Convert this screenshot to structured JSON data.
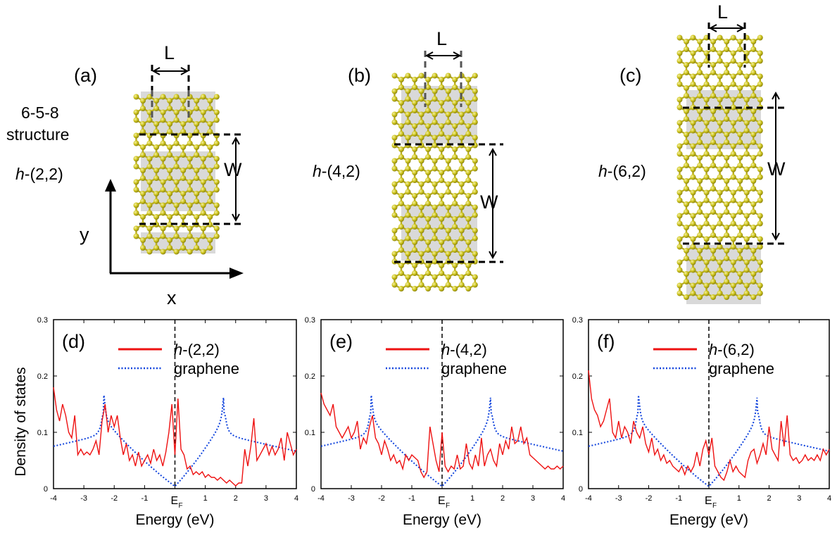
{
  "structures": [
    {
      "panel": "(a)",
      "label_prefix": "h",
      "label_suffix": "-(2,2)",
      "extra_label_line1": "6-5-8",
      "extra_label_line2": "structure",
      "length_label": "L",
      "width_label": "W"
    },
    {
      "panel": "(b)",
      "label_prefix": "h",
      "label_suffix": "-(4,2)",
      "length_label": "L",
      "width_label": "W"
    },
    {
      "panel": "(c)",
      "label_prefix": "h",
      "label_suffix": "-(6,2)",
      "length_label": "L",
      "width_label": "W"
    }
  ],
  "axes_labels": {
    "x": "x",
    "y": "y"
  },
  "colors": {
    "atom": "#c9c21a",
    "atom_light": "#e6e07a",
    "bond": "#b8ad20",
    "shade": "#d9d9d9",
    "red": "#ee1111",
    "blue": "#1144dd"
  },
  "chart_data": [
    {
      "type": "line",
      "panel": "(d)",
      "ylabel": "Density of states",
      "xlabel": "Energy (eV)",
      "xlim": [
        -4,
        4
      ],
      "ylim": [
        0,
        0.3
      ],
      "x_ticks": [
        "-4",
        "-3",
        "-2",
        "-1",
        "E",
        "1",
        "2",
        "3",
        "4"
      ],
      "y_ticks": [
        "0",
        "0.1",
        "0.2",
        "0.3"
      ],
      "fermi_label": "E",
      "fermi_sub": "F",
      "legend": {
        "red_prefix": "h",
        "red_suffix": "-(2,2)",
        "blue": "graphene"
      },
      "series": [
        {
          "name": "h-(2,2)",
          "style": "solid",
          "color": "#ee1111",
          "x": [
            -4,
            -3.9,
            -3.8,
            -3.7,
            -3.6,
            -3.5,
            -3.4,
            -3.3,
            -3.2,
            -3.1,
            -3.0,
            -2.9,
            -2.8,
            -2.7,
            -2.6,
            -2.5,
            -2.4,
            -2.3,
            -2.2,
            -2.1,
            -2.0,
            -1.9,
            -1.8,
            -1.7,
            -1.6,
            -1.5,
            -1.4,
            -1.3,
            -1.2,
            -1.1,
            -1.0,
            -0.9,
            -0.8,
            -0.7,
            -0.6,
            -0.5,
            -0.4,
            -0.3,
            -0.2,
            -0.1,
            0.0,
            0.1,
            0.2,
            0.3,
            0.4,
            0.5,
            0.6,
            0.7,
            0.8,
            0.9,
            1.0,
            1.1,
            1.2,
            1.3,
            1.4,
            1.5,
            1.6,
            1.7,
            1.8,
            1.9,
            2.0,
            2.1,
            2.2,
            2.3,
            2.4,
            2.5,
            2.6,
            2.7,
            2.8,
            2.9,
            3.0,
            3.1,
            3.2,
            3.3,
            3.4,
            3.5,
            3.6,
            3.7,
            3.8,
            3.9,
            4.0
          ],
          "y": [
            0.18,
            0.14,
            0.12,
            0.15,
            0.13,
            0.1,
            0.09,
            0.13,
            0.06,
            0.07,
            0.06,
            0.065,
            0.06,
            0.07,
            0.085,
            0.06,
            0.12,
            0.15,
            0.1,
            0.13,
            0.11,
            0.13,
            0.09,
            0.06,
            0.08,
            0.05,
            0.06,
            0.04,
            0.065,
            0.04,
            0.05,
            0.06,
            0.045,
            0.07,
            0.05,
            0.06,
            0.04,
            0.065,
            0.1,
            0.15,
            0.06,
            0.16,
            0.07,
            0.06,
            0.035,
            0.04,
            0.025,
            0.03,
            0.025,
            0.03,
            0.02,
            0.025,
            0.02,
            0.02,
            0.015,
            0.02,
            0.015,
            0.01,
            0.015,
            0.01,
            0.005,
            0.01,
            0.01,
            0.07,
            0.04,
            0.075,
            0.125,
            0.05,
            0.06,
            0.07,
            0.08,
            0.06,
            0.075,
            0.06,
            0.07,
            0.09,
            0.05,
            0.1,
            0.08,
            0.06,
            0.07
          ]
        },
        {
          "name": "graphene",
          "style": "dotted",
          "color": "#1144dd",
          "type_hint": "graphene_dos"
        }
      ]
    },
    {
      "type": "line",
      "panel": "(e)",
      "xlabel": "Energy (eV)",
      "xlim": [
        -4,
        4
      ],
      "ylim": [
        0,
        0.3
      ],
      "x_ticks": [
        "-4",
        "-3",
        "-2",
        "-1",
        "E",
        "1",
        "2",
        "3",
        "4"
      ],
      "y_ticks": [
        "0",
        "0.1",
        "0.2",
        "0.3"
      ],
      "fermi_label": "E",
      "fermi_sub": "F",
      "legend": {
        "red_prefix": "h",
        "red_suffix": "-(4,2)",
        "blue": "graphene"
      },
      "series": [
        {
          "name": "h-(4,2)",
          "style": "solid",
          "color": "#ee1111",
          "x": [
            -4,
            -3.9,
            -3.8,
            -3.7,
            -3.6,
            -3.5,
            -3.4,
            -3.3,
            -3.2,
            -3.1,
            -3.0,
            -2.9,
            -2.8,
            -2.7,
            -2.6,
            -2.5,
            -2.4,
            -2.3,
            -2.2,
            -2.1,
            -2.0,
            -1.9,
            -1.8,
            -1.7,
            -1.6,
            -1.5,
            -1.4,
            -1.3,
            -1.2,
            -1.1,
            -1.0,
            -0.9,
            -0.8,
            -0.7,
            -0.6,
            -0.5,
            -0.4,
            -0.3,
            -0.2,
            -0.1,
            0.0,
            0.1,
            0.2,
            0.3,
            0.4,
            0.5,
            0.6,
            0.7,
            0.8,
            0.9,
            1.0,
            1.1,
            1.2,
            1.3,
            1.4,
            1.5,
            1.6,
            1.7,
            1.8,
            1.9,
            2.0,
            2.1,
            2.2,
            2.3,
            2.4,
            2.5,
            2.6,
            2.7,
            2.8,
            2.9,
            3.0,
            3.1,
            3.2,
            3.3,
            3.4,
            3.5,
            3.6,
            3.7,
            3.8,
            3.9,
            4.0
          ],
          "y": [
            0.17,
            0.15,
            0.14,
            0.13,
            0.15,
            0.11,
            0.1,
            0.09,
            0.1,
            0.11,
            0.09,
            0.1,
            0.12,
            0.07,
            0.09,
            0.08,
            0.11,
            0.13,
            0.09,
            0.08,
            0.06,
            0.085,
            0.07,
            0.05,
            0.06,
            0.045,
            0.05,
            0.035,
            0.06,
            0.05,
            0.06,
            0.055,
            0.05,
            0.03,
            0.02,
            0.03,
            0.11,
            0.08,
            0.05,
            0.03,
            0.1,
            0.04,
            0.03,
            0.04,
            0.035,
            0.06,
            0.035,
            0.04,
            0.08,
            0.045,
            0.035,
            0.06,
            0.04,
            0.09,
            0.04,
            0.06,
            0.07,
            0.05,
            0.04,
            0.08,
            0.06,
            0.085,
            0.07,
            0.11,
            0.08,
            0.085,
            0.11,
            0.08,
            0.09,
            0.06,
            0.055,
            0.05,
            0.045,
            0.04,
            0.035,
            0.04,
            0.035,
            0.035,
            0.04,
            0.035,
            0.04
          ]
        },
        {
          "name": "graphene",
          "style": "dotted",
          "color": "#1144dd",
          "type_hint": "graphene_dos"
        }
      ]
    },
    {
      "type": "line",
      "panel": "(f)",
      "xlabel": "Energy (eV)",
      "xlim": [
        -4,
        4
      ],
      "ylim": [
        0,
        0.3
      ],
      "x_ticks": [
        "-4",
        "-3",
        "-2",
        "-1",
        "E",
        "1",
        "2",
        "3",
        "4"
      ],
      "y_ticks": [
        "0",
        "0.1",
        "0.2",
        "0.3"
      ],
      "fermi_label": "E",
      "fermi_sub": "F",
      "legend": {
        "red_prefix": "h",
        "red_suffix": "-(6,2)",
        "blue": "graphene"
      },
      "series": [
        {
          "name": "h-(6,2)",
          "style": "solid",
          "color": "#ee1111",
          "x": [
            -4,
            -3.9,
            -3.8,
            -3.7,
            -3.6,
            -3.5,
            -3.4,
            -3.3,
            -3.2,
            -3.1,
            -3.0,
            -2.9,
            -2.8,
            -2.7,
            -2.6,
            -2.5,
            -2.4,
            -2.3,
            -2.2,
            -2.1,
            -2.0,
            -1.9,
            -1.8,
            -1.7,
            -1.6,
            -1.5,
            -1.4,
            -1.3,
            -1.2,
            -1.1,
            -1.0,
            -0.9,
            -0.8,
            -0.7,
            -0.6,
            -0.5,
            -0.4,
            -0.3,
            -0.2,
            -0.1,
            0.0,
            0.1,
            0.2,
            0.3,
            0.4,
            0.5,
            0.6,
            0.7,
            0.8,
            0.9,
            1.0,
            1.1,
            1.2,
            1.3,
            1.4,
            1.5,
            1.6,
            1.7,
            1.8,
            1.9,
            2.0,
            2.1,
            2.2,
            2.3,
            2.4,
            2.5,
            2.6,
            2.7,
            2.8,
            2.9,
            3.0,
            3.1,
            3.2,
            3.3,
            3.4,
            3.5,
            3.6,
            3.7,
            3.8,
            3.9,
            4.0
          ],
          "y": [
            0.21,
            0.16,
            0.14,
            0.13,
            0.11,
            0.12,
            0.14,
            0.16,
            0.1,
            0.09,
            0.12,
            0.09,
            0.11,
            0.1,
            0.08,
            0.12,
            0.1,
            0.09,
            0.11,
            0.08,
            0.065,
            0.09,
            0.06,
            0.07,
            0.05,
            0.06,
            0.045,
            0.05,
            0.04,
            0.035,
            0.03,
            0.04,
            0.025,
            0.04,
            0.03,
            0.04,
            0.065,
            0.04,
            0.07,
            0.085,
            0.06,
            0.09,
            0.04,
            0.03,
            0.02,
            0.015,
            0.03,
            0.05,
            0.03,
            0.04,
            0.03,
            0.025,
            0.02,
            0.05,
            0.065,
            0.07,
            0.045,
            0.06,
            0.08,
            0.06,
            0.11,
            0.07,
            0.06,
            0.05,
            0.12,
            0.075,
            0.13,
            0.06,
            0.05,
            0.055,
            0.045,
            0.05,
            0.06,
            0.05,
            0.055,
            0.05,
            0.06,
            0.05,
            0.07,
            0.06,
            0.07
          ]
        },
        {
          "name": "graphene",
          "style": "dotted",
          "color": "#1144dd",
          "type_hint": "graphene_dos"
        }
      ]
    }
  ]
}
